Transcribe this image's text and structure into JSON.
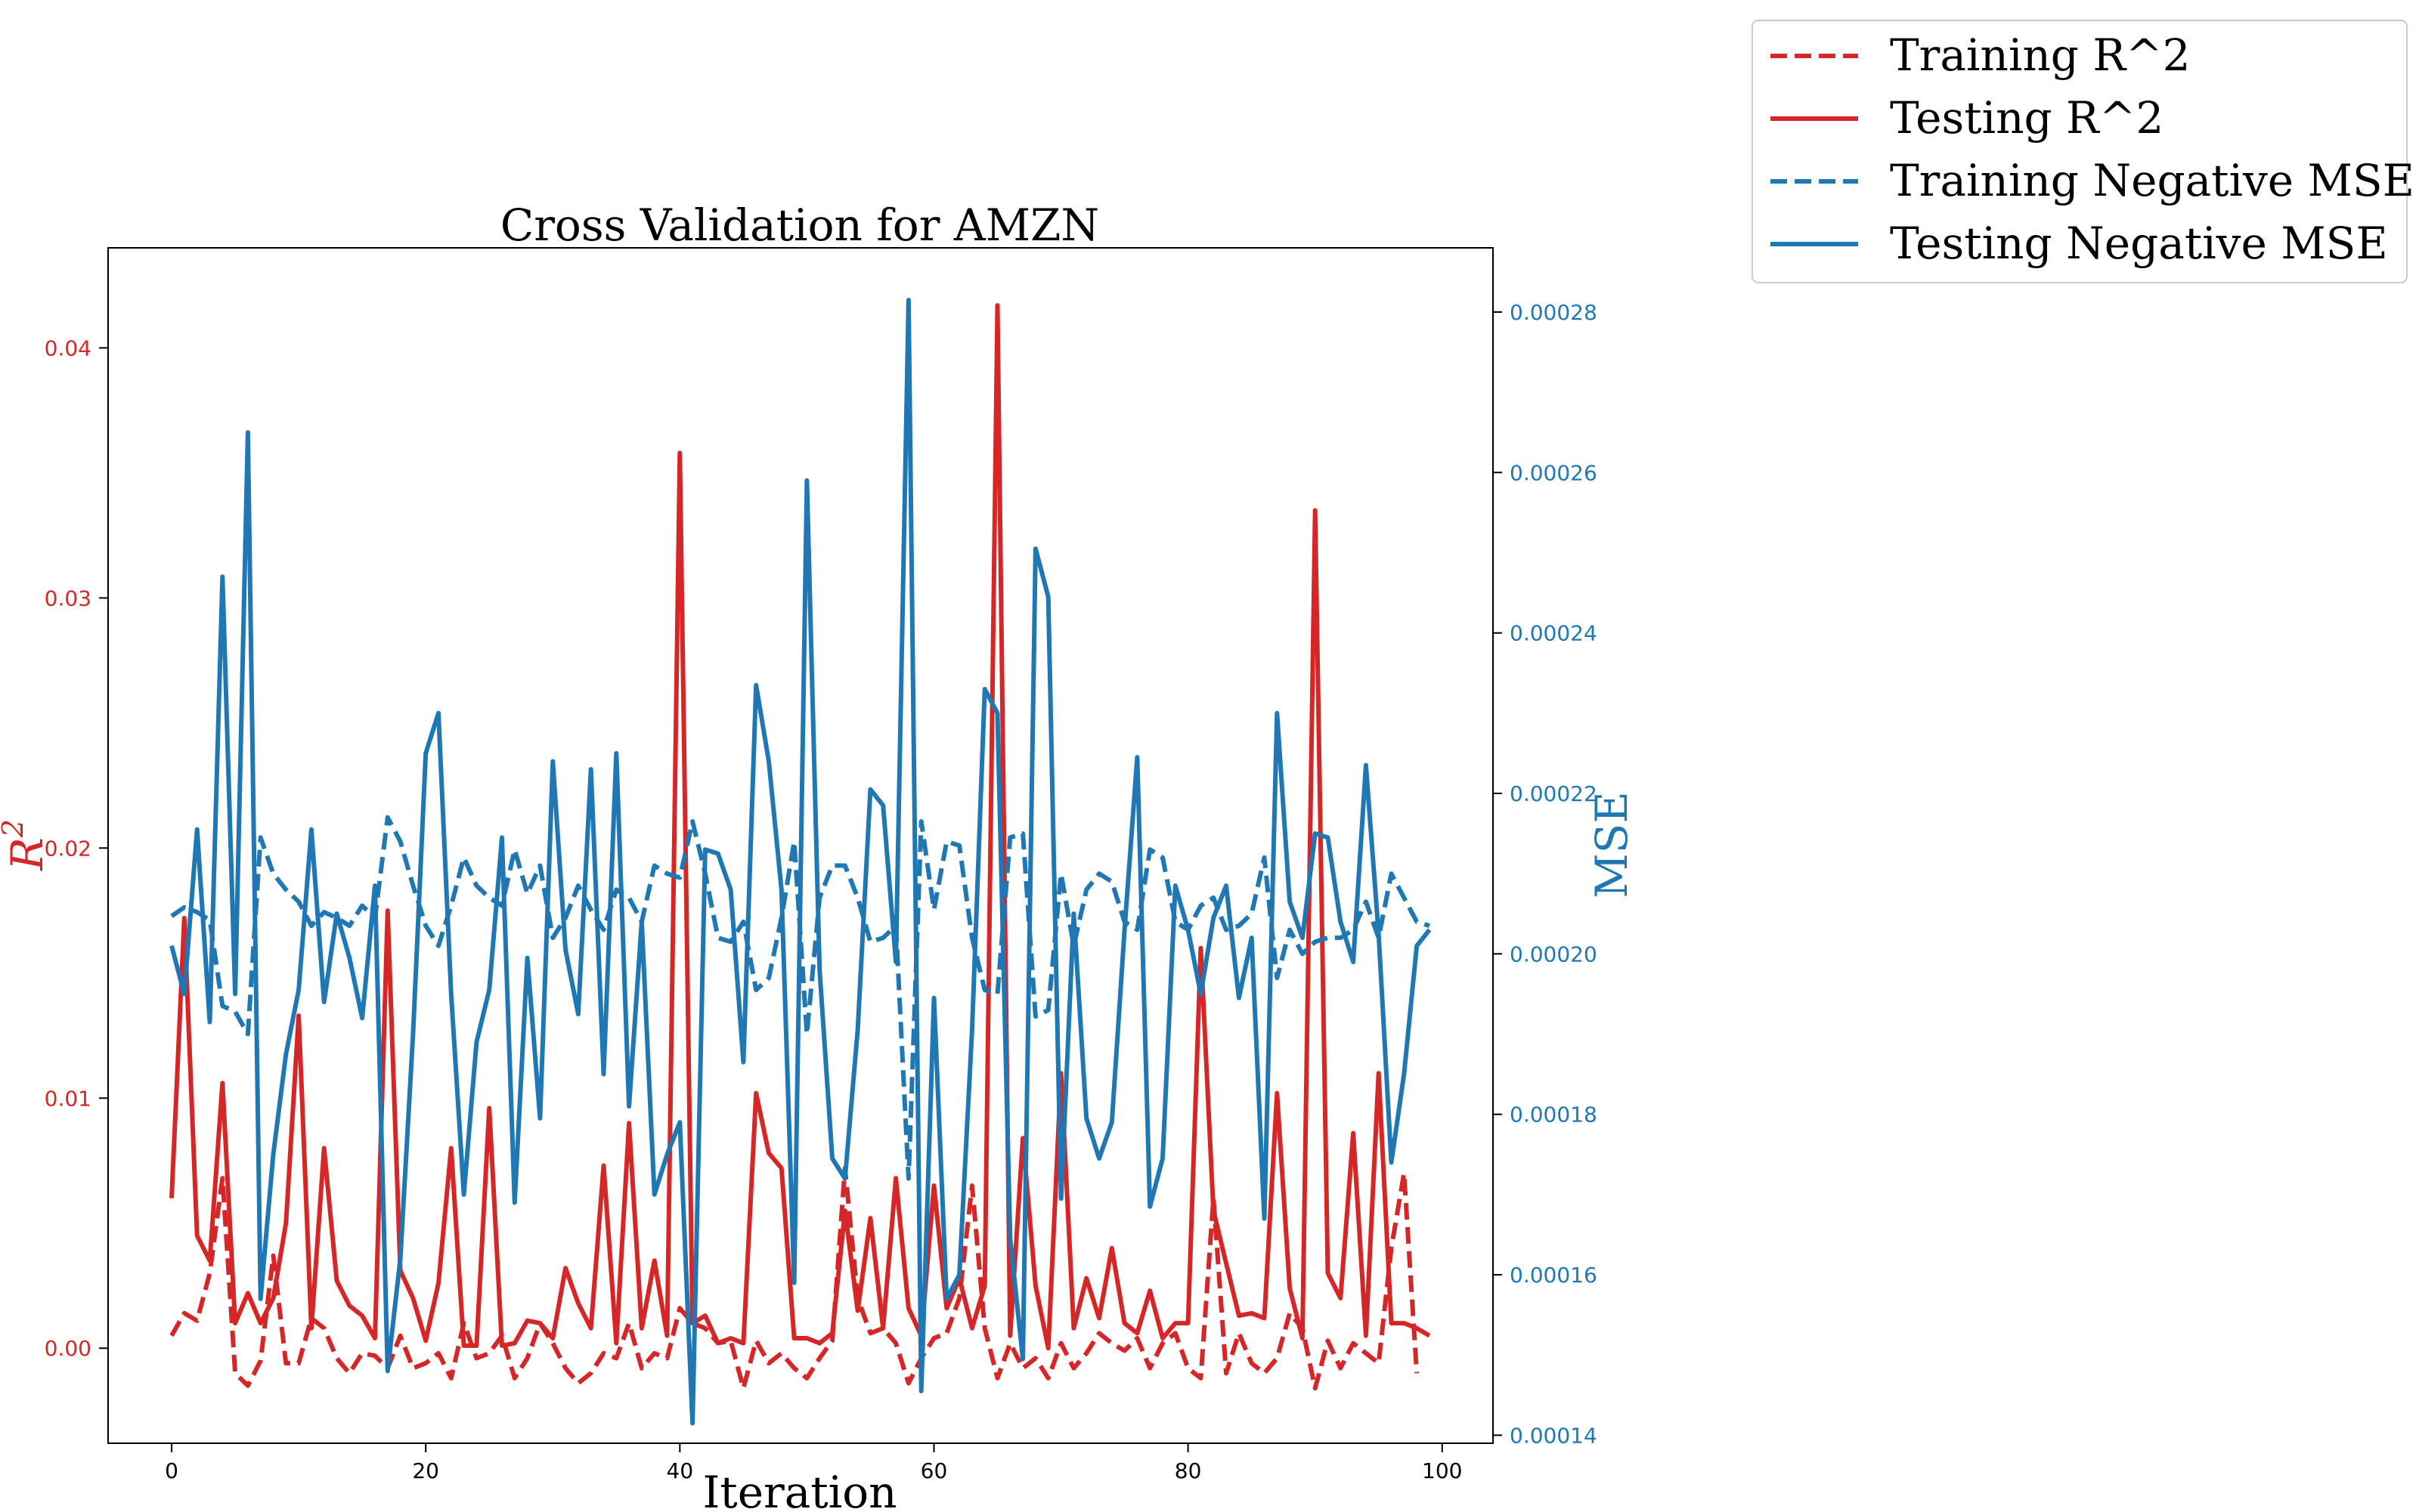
{
  "chart_data": {
    "type": "line",
    "title": "Cross Validation for AMZN",
    "xlabel": "Iteration",
    "ylabel_left": "R^2",
    "ylabel_right": "MSE",
    "xlim": [
      -5,
      104
    ],
    "ylim_left": [
      -0.0038,
      0.044
    ],
    "ylim_right": [
      0.000139,
      0.000288
    ],
    "x_ticks": [
      "0",
      "20",
      "40",
      "60",
      "80",
      "100"
    ],
    "y_left_ticks": [
      "0.00",
      "0.01",
      "0.02",
      "0.03",
      "0.04"
    ],
    "y_right_ticks": [
      "0.00014",
      "0.00016",
      "0.00018",
      "0.00020",
      "0.00022",
      "0.00024",
      "0.00026",
      "0.00028"
    ],
    "colors": {
      "red": "#d62728",
      "blue": "#1f77b4"
    },
    "grid": false,
    "legend_position": "top-right, outside plot",
    "series": [
      {
        "name": "Training R^2",
        "axis": "left",
        "color": "#d62728",
        "dash": true,
        "values": [
          0.0005,
          0.0014,
          0.0011,
          0.003,
          0.0068,
          -0.001,
          -0.0015,
          -0.0005,
          0.0037,
          -0.0006,
          -0.0006,
          0.0012,
          0.0008,
          -0.0004,
          -0.001,
          -0.0002,
          -0.0003,
          -0.0008,
          0.0005,
          -0.0008,
          -0.0006,
          -0.0002,
          -0.0012,
          0.001,
          -0.0004,
          -0.0002,
          0.0005,
          -0.0012,
          -0.0004,
          0.001,
          0.0002,
          -0.0008,
          -0.0014,
          -0.001,
          -0.0002,
          -0.0004,
          0.001,
          -0.0008,
          -0.0002,
          -0.0004,
          0.0016,
          0.001,
          0.0008,
          0.0002,
          0.0003,
          -0.0016,
          0.0003,
          -0.0006,
          -0.0002,
          -0.0008,
          -0.0012,
          -0.0004,
          0.0003,
          0.0072,
          0.002,
          0.0006,
          0.0008,
          0.0002,
          -0.0014,
          -0.0004,
          0.0004,
          0.0006,
          0.002,
          0.0065,
          0.0008,
          -0.0012,
          0.0002,
          -0.0008,
          -0.0004,
          -0.0012,
          0.0002,
          -0.0008,
          -0.0002,
          0.0006,
          0.0002,
          -0.0001,
          0.0004,
          -0.0008,
          0.0002,
          0.0006,
          -0.0008,
          -0.0012,
          0.006,
          -0.001,
          0.0006,
          -0.0006,
          -0.001,
          -0.0004,
          0.0014,
          0.0008,
          -0.0016,
          0.0003,
          -0.0008,
          0.0002,
          -0.0002,
          -0.0006,
          0.004,
          0.007,
          -0.001
        ]
      },
      {
        "name": "Testing R^2",
        "axis": "left",
        "color": "#d62728",
        "dash": false,
        "values": [
          0.006,
          0.0172,
          0.0045,
          0.0035,
          0.0106,
          0.001,
          0.0022,
          0.001,
          0.002,
          0.005,
          0.0133,
          0.0008,
          0.008,
          0.0027,
          0.0017,
          0.0013,
          0.0004,
          0.0175,
          0.0031,
          0.002,
          0.0003,
          0.0026,
          0.008,
          0.0001,
          0.0001,
          0.0096,
          0.0001,
          0.0002,
          0.0011,
          0.001,
          0.0004,
          0.0032,
          0.0018,
          0.0008,
          0.0073,
          0.0002,
          0.009,
          0.0008,
          0.0035,
          0.0005,
          0.0358,
          0.001,
          0.0013,
          0.0002,
          0.0004,
          0.0002,
          0.0102,
          0.0078,
          0.0072,
          0.0004,
          0.0004,
          0.0002,
          0.0006,
          0.0055,
          0.0015,
          0.0052,
          0.0008,
          0.0068,
          0.0016,
          0.0005,
          0.0065,
          0.0016,
          0.0028,
          0.0008,
          0.0025,
          0.0417,
          0.0005,
          0.0084,
          0.0025,
          0.0,
          0.011,
          0.0008,
          0.0028,
          0.0012,
          0.004,
          0.001,
          0.0006,
          0.0023,
          0.0004,
          0.001,
          0.001,
          0.016,
          0.0055,
          0.0034,
          0.0013,
          0.0014,
          0.0012,
          0.0102,
          0.0024,
          0.0004,
          0.0335,
          0.003,
          0.002,
          0.0086,
          0.0005,
          0.011,
          0.001,
          0.001,
          0.0008,
          0.0005
        ]
      },
      {
        "name": "Training Negative MSE",
        "axis": "right",
        "color": "#1f77b4",
        "dash": true,
        "values": [
          0.0002047,
          0.0002058,
          0.0002052,
          0.0002042,
          0.0001935,
          0.0001928,
          0.00019,
          0.0002145,
          0.00021,
          0.000208,
          0.0002065,
          0.0002035,
          0.0002052,
          0.0002045,
          0.0002035,
          0.000206,
          0.0002045,
          0.000217,
          0.000214,
          0.0002085,
          0.0002035,
          0.000201,
          0.000206,
          0.000212,
          0.0002085,
          0.000207,
          0.000206,
          0.000213,
          0.0002075,
          0.000211,
          0.000202,
          0.0002045,
          0.0002085,
          0.0002055,
          0.000203,
          0.000208,
          0.000207,
          0.000204,
          0.000211,
          0.00021,
          0.0002095,
          0.0002165,
          0.00021,
          0.000202,
          0.0002015,
          0.000204,
          0.0001955,
          0.000197,
          0.0002045,
          0.000214,
          0.00019,
          0.000207,
          0.000211,
          0.000211,
          0.000207,
          0.0002015,
          0.000202,
          0.0002035,
          0.000172,
          0.0002165,
          0.0002055,
          0.000214,
          0.0002135,
          0.000202,
          0.0001955,
          0.000195,
          0.0002145,
          0.000215,
          0.0001922,
          0.000193,
          0.00021,
          0.000201,
          0.000208,
          0.00021,
          0.000209,
          0.000204,
          0.000203,
          0.000213,
          0.000212,
          0.000204,
          0.000203,
          0.000206,
          0.000207,
          0.000203,
          0.0002035,
          0.000205,
          0.000212,
          0.000197,
          0.000203,
          0.0002,
          0.0002015,
          0.000202,
          0.000202,
          0.000203,
          0.0002065,
          0.000202,
          0.00021,
          0.000207,
          0.000204,
          0.0002035
        ]
      },
      {
        "name": "Testing Negative MSE",
        "axis": "right",
        "color": "#1f77b4",
        "dash": false,
        "values": [
          0.000201,
          0.000195,
          0.0002155,
          0.0001915,
          0.000247,
          0.000195,
          0.000265,
          0.000157,
          0.000175,
          0.0001875,
          0.0001955,
          0.0002155,
          0.000194,
          0.000205,
          0.0001995,
          0.000192,
          0.0002085,
          0.000148,
          0.000162,
          0.00019,
          0.000225,
          0.00023,
          0.000195,
          0.00017,
          0.000189,
          0.0001955,
          0.0002145,
          0.000169,
          0.0001995,
          0.0001795,
          0.000224,
          0.0002005,
          0.0001925,
          0.000223,
          0.000185,
          0.000225,
          0.000181,
          0.000204,
          0.00017,
          0.000175,
          0.000179,
          0.0001415,
          0.000213,
          0.0002125,
          0.000208,
          0.0001865,
          0.0002335,
          0.000224,
          0.000208,
          0.000159,
          0.000259,
          0.000198,
          0.0001745,
          0.000172,
          0.0001905,
          0.0002205,
          0.0002185,
          0.000199,
          0.0002815,
          0.0001455,
          0.0001945,
          0.000157,
          0.00016,
          0.0001905,
          0.000233,
          0.00023,
          0.0001645,
          0.0001495,
          0.0002505,
          0.0002445,
          0.0001695,
          0.000205,
          0.0001795,
          0.0001745,
          0.000179,
          0.000203,
          0.0002245,
          0.0001685,
          0.0001745,
          0.0002085,
          0.000203,
          0.000195,
          0.0002045,
          0.0002085,
          0.0001945,
          0.000202,
          0.000167,
          0.00023,
          0.0002065,
          0.000202,
          0.000215,
          0.0002145,
          0.000204,
          0.000199,
          0.0002235,
          0.0002025,
          0.000174,
          0.000185,
          0.000201,
          0.000203
        ]
      }
    ]
  }
}
